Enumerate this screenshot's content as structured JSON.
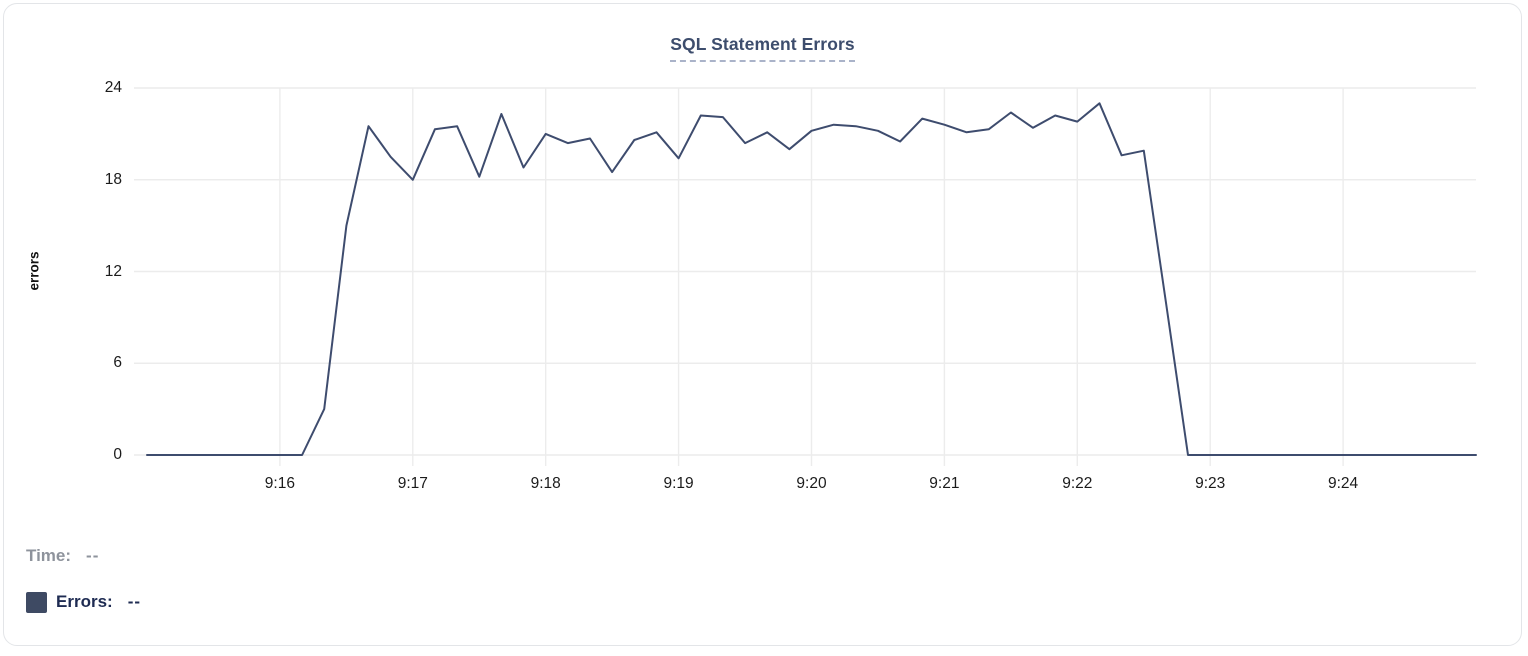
{
  "chart_data": {
    "type": "line",
    "title": "SQL Statement Errors",
    "ylabel": "errors",
    "xlabel": "",
    "ylim": [
      0,
      24
    ],
    "yticks": [
      0,
      6,
      12,
      18,
      24
    ],
    "xtick_labels": [
      "9:16",
      "9:17",
      "9:18",
      "9:19",
      "9:20",
      "9:21",
      "9:22",
      "9:23",
      "9:24"
    ],
    "x_domain_minutes": [
      "9:15",
      "9:25"
    ],
    "sample_interval_seconds": 10,
    "grid": true,
    "legend_position": "bottom-left",
    "series": [
      {
        "name": "Errors",
        "color": "#3e4c6e",
        "start_time": "9:15:00",
        "values": [
          0,
          0,
          0,
          0,
          0,
          0,
          0,
          0,
          3,
          15,
          21.5,
          19.5,
          18,
          21.3,
          21.5,
          18.2,
          22.3,
          18.8,
          21,
          20.4,
          20.7,
          18.5,
          20.6,
          21.1,
          19.4,
          22.2,
          22.1,
          20.4,
          21.1,
          20,
          21.2,
          21.6,
          21.5,
          21.2,
          20.5,
          22,
          21.6,
          21.1,
          21.3,
          22.4,
          21.4,
          22.2,
          21.8,
          23,
          19.6,
          19.9,
          10,
          0,
          0,
          0,
          0,
          0,
          0,
          0,
          0,
          0,
          0,
          0,
          0,
          0,
          0
        ]
      }
    ]
  },
  "readout": {
    "time_label": "Time:",
    "time_value": "--",
    "series_label": "Errors:",
    "series_value": "--",
    "swatch_color": "#3e4a63"
  },
  "colors": {
    "title_text": "#3d4d6d",
    "title_underline": "#aab3c9",
    "grid_line": "#ececec",
    "axis_text": "#1b1b1b",
    "series_line": "#3e4c6e",
    "muted_text": "#8e939c",
    "dark_text": "#1e2b52",
    "card_border": "#e3e5e8"
  }
}
